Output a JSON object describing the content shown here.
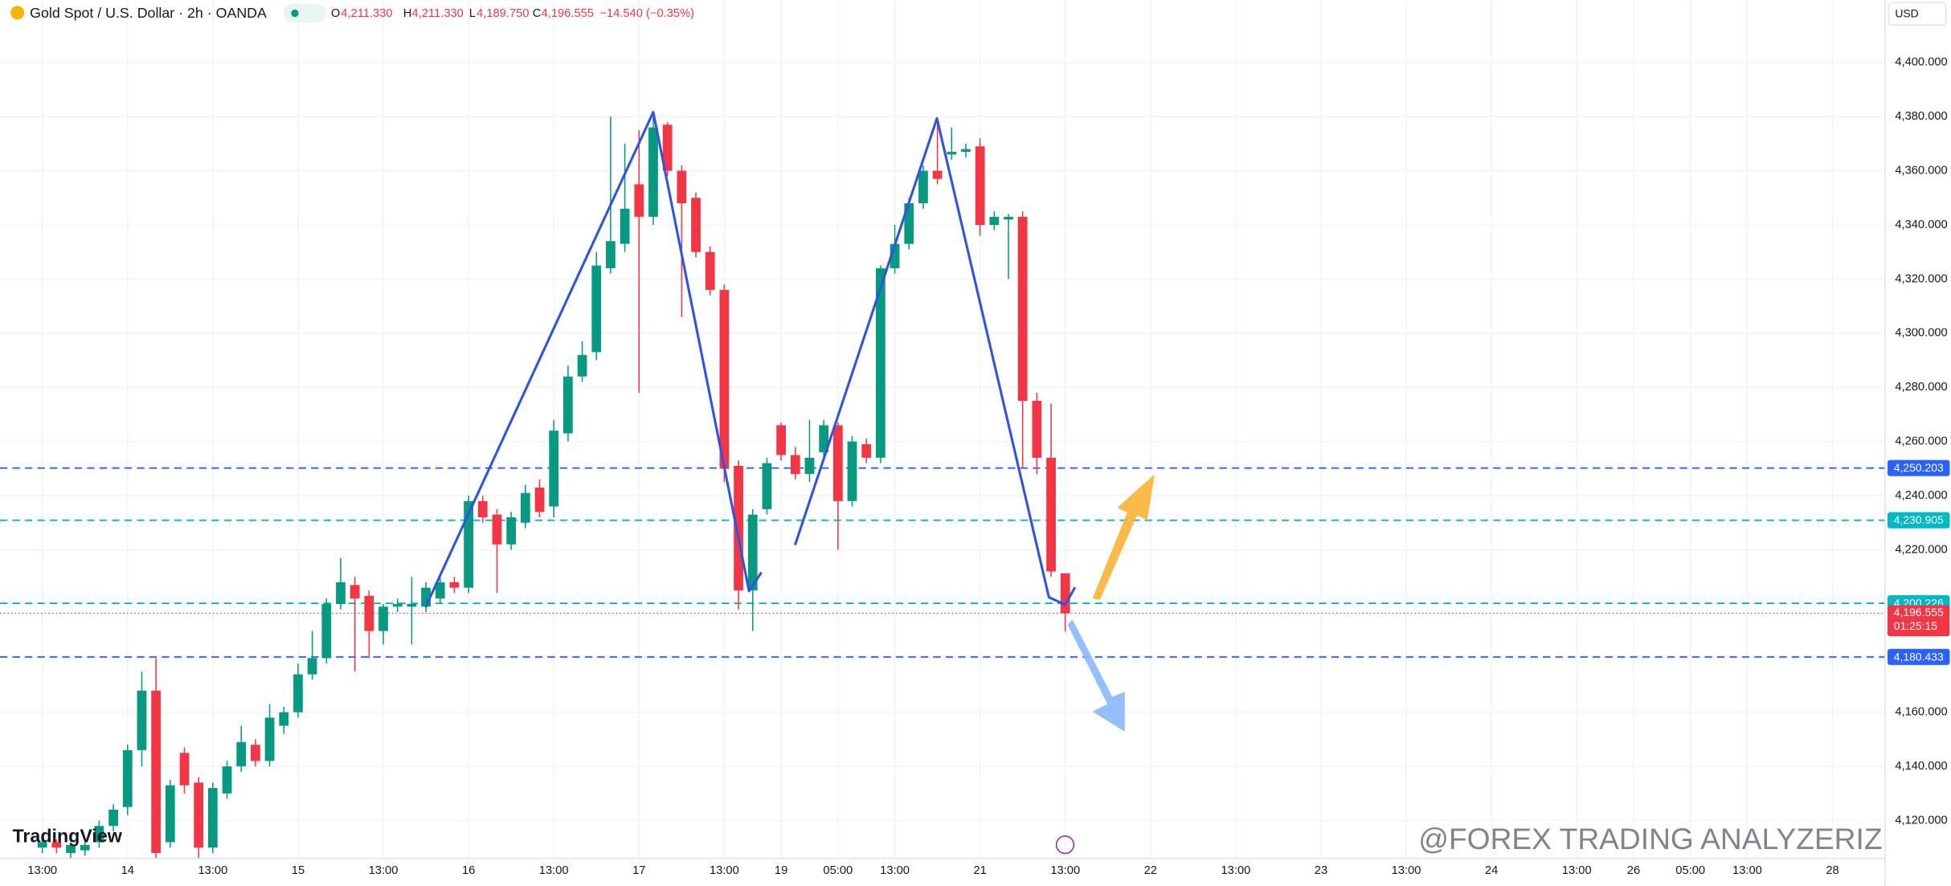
{
  "header": {
    "symbol": "Gold Spot / U.S. Dollar · 2h · OANDA",
    "o_label": "O",
    "o": "4,211.330",
    "h_label": "H",
    "h": "4,211.330",
    "l_label": "L",
    "l": "4,189.750",
    "c_label": "C",
    "c": "4,196.555",
    "change": "−14.540 (−0.35%)",
    "currency": "USD"
  },
  "watermark": {
    "logo": "TradingView",
    "overlay": "@FOREX TRADING ANALYZERIZ"
  },
  "chart_data": {
    "type": "candlestick",
    "up_color": "#089981",
    "down_color": "#f23645",
    "grid": true,
    "ylim": [
      4106,
      4423
    ],
    "xlim": [
      -2.98,
      129.7
    ],
    "yticks": [
      {
        "value": 4120,
        "label": "4,120.000"
      },
      {
        "value": 4140,
        "label": "4,140.000"
      },
      {
        "value": 4160,
        "label": "4,160.000"
      },
      {
        "value": 4180,
        "label": "4,180.000"
      },
      {
        "value": 4200,
        "label": "4,200.000"
      },
      {
        "value": 4220,
        "label": "4,220.000"
      },
      {
        "value": 4240,
        "label": "4,240.000"
      },
      {
        "value": 4260,
        "label": "4,260.000"
      },
      {
        "value": 4280,
        "label": "4,280.000"
      },
      {
        "value": 4300,
        "label": "4,300.000"
      },
      {
        "value": 4320,
        "label": "4,320.000"
      },
      {
        "value": 4340,
        "label": "4,340.000"
      },
      {
        "value": 4360,
        "label": "4,360.000"
      },
      {
        "value": 4380,
        "label": "4,380.000"
      },
      {
        "value": 4400,
        "label": "4,400.000"
      }
    ],
    "xticks": [
      {
        "value": 0,
        "label": "13:00"
      },
      {
        "value": 6,
        "label": "14"
      },
      {
        "value": 12,
        "label": "13:00"
      },
      {
        "value": 18,
        "label": "15"
      },
      {
        "value": 24,
        "label": "13:00"
      },
      {
        "value": 30,
        "label": "16"
      },
      {
        "value": 36,
        "label": "13:00"
      },
      {
        "value": 42,
        "label": "17"
      },
      {
        "value": 48,
        "label": "13:00"
      },
      {
        "value": 52,
        "label": "19"
      },
      {
        "value": 56,
        "label": "05:00"
      },
      {
        "value": 60,
        "label": "13:00"
      },
      {
        "value": 66,
        "label": "21"
      },
      {
        "value": 72,
        "label": "13:00"
      },
      {
        "value": 78,
        "label": "22"
      },
      {
        "value": 84,
        "label": "13:00"
      },
      {
        "value": 90,
        "label": "23"
      },
      {
        "value": 96,
        "label": "13:00"
      },
      {
        "value": 102,
        "label": "24"
      },
      {
        "value": 108,
        "label": "13:00"
      },
      {
        "value": 112,
        "label": "26"
      },
      {
        "value": 116,
        "label": "05:00"
      },
      {
        "value": 120,
        "label": "13:00"
      },
      {
        "value": 126,
        "label": "28"
      }
    ],
    "open": [
      4110,
      4112,
      4108,
      4109,
      4112,
      4118,
      4125,
      4146,
      4168,
      4112,
      4145,
      4134,
      4110,
      4130,
      4140,
      4148,
      4142,
      4155,
      4160,
      4174,
      4180,
      4200,
      4207,
      4203,
      4190,
      4199,
      4199,
      4199,
      4202,
      4208,
      4206,
      4238,
      4233,
      4222,
      4230,
      4243,
      4236,
      4263,
      4284,
      4293,
      4324,
      4333,
      4355,
      4343,
      4377,
      4360,
      4350,
      4330,
      4316,
      4251,
      4205,
      4235,
      4266,
      4255,
      4248,
      4256,
      4266,
      4238,
      4259,
      4254,
      4324,
      4333,
      4348,
      4360,
      4366,
      4367,
      4369,
      4340,
      4342,
      4343,
      4275,
      4254,
      4211.33
    ],
    "high": [
      4113,
      4113,
      4112,
      4112,
      4120,
      4126,
      4148,
      4175,
      4180,
      4135,
      4147,
      4136,
      4134,
      4142,
      4155,
      4150,
      4163,
      4162,
      4178,
      4190,
      4202,
      4217,
      4210,
      4205,
      4200,
      4202,
      4210,
      4208,
      4210,
      4210,
      4240,
      4240,
      4235,
      4234,
      4244,
      4246,
      4268,
      4288,
      4297,
      4330,
      4380,
      4370,
      4375,
      4382,
      4378,
      4362,
      4352,
      4332,
      4318,
      4253,
      4235,
      4254,
      4267,
      4258,
      4268,
      4268,
      4267,
      4262,
      4261,
      4325,
      4340,
      4350,
      4362,
      4377,
      4376,
      4370,
      4372,
      4345,
      4344,
      4345,
      4278,
      4274,
      4211.33
    ],
    "low": [
      4108,
      4108,
      4106,
      4107,
      4110,
      4116,
      4122,
      4140,
      4106,
      4110,
      4130,
      4106,
      4108,
      4128,
      4138,
      4140,
      4140,
      4152,
      4158,
      4172,
      4178,
      4198,
      4175,
      4180,
      4185,
      4197,
      4185,
      4197,
      4200,
      4204,
      4204,
      4230,
      4204,
      4220,
      4228,
      4232,
      4232,
      4260,
      4282,
      4290,
      4322,
      4330,
      4278,
      4340,
      4358,
      4306,
      4328,
      4314,
      4245,
      4198,
      4190,
      4233,
      4253,
      4246,
      4245,
      4254,
      4220,
      4236,
      4252,
      4252,
      4322,
      4331,
      4346,
      4355,
      4364,
      4365,
      4336,
      4338,
      4320,
      4250,
      4248,
      4210,
      4189.75
    ],
    "close": [
      4112,
      4110,
      4111,
      4111,
      4118,
      4124,
      4146,
      4168,
      4108,
      4133,
      4133,
      4110,
      4132,
      4140,
      4149,
      4142,
      4158,
      4160,
      4174,
      4180,
      4200,
      4208,
      4202,
      4190,
      4199,
      4200,
      4200,
      4206,
      4208,
      4206,
      4238,
      4232,
      4222,
      4232,
      4241,
      4234,
      4264,
      4284,
      4292,
      4325,
      4334,
      4346,
      4343,
      4376,
      4360,
      4348,
      4330,
      4316,
      4250,
      4205,
      4233,
      4252,
      4255,
      4248,
      4254,
      4266,
      4238,
      4260,
      4254,
      4324,
      4333,
      4348,
      4360,
      4357,
      4367,
      4368,
      4340,
      4343,
      4343,
      4275,
      4254,
      4212,
      4196.555
    ],
    "levels": [
      {
        "value": 4250.203,
        "label": "4,250.203",
        "color": "#2962ff"
      },
      {
        "value": 4230.905,
        "label": "4,230.905",
        "color": "#00b8c8"
      },
      {
        "value": 4200.226,
        "label": "4,200.226",
        "color": "#00b8c8"
      },
      {
        "value": 4180.433,
        "label": "4,180.433",
        "color": "#2962ff"
      }
    ],
    "last_price": {
      "value": 4196.555,
      "label": "4,196.555",
      "countdown": "01:25:15",
      "color": "#f23645"
    }
  }
}
